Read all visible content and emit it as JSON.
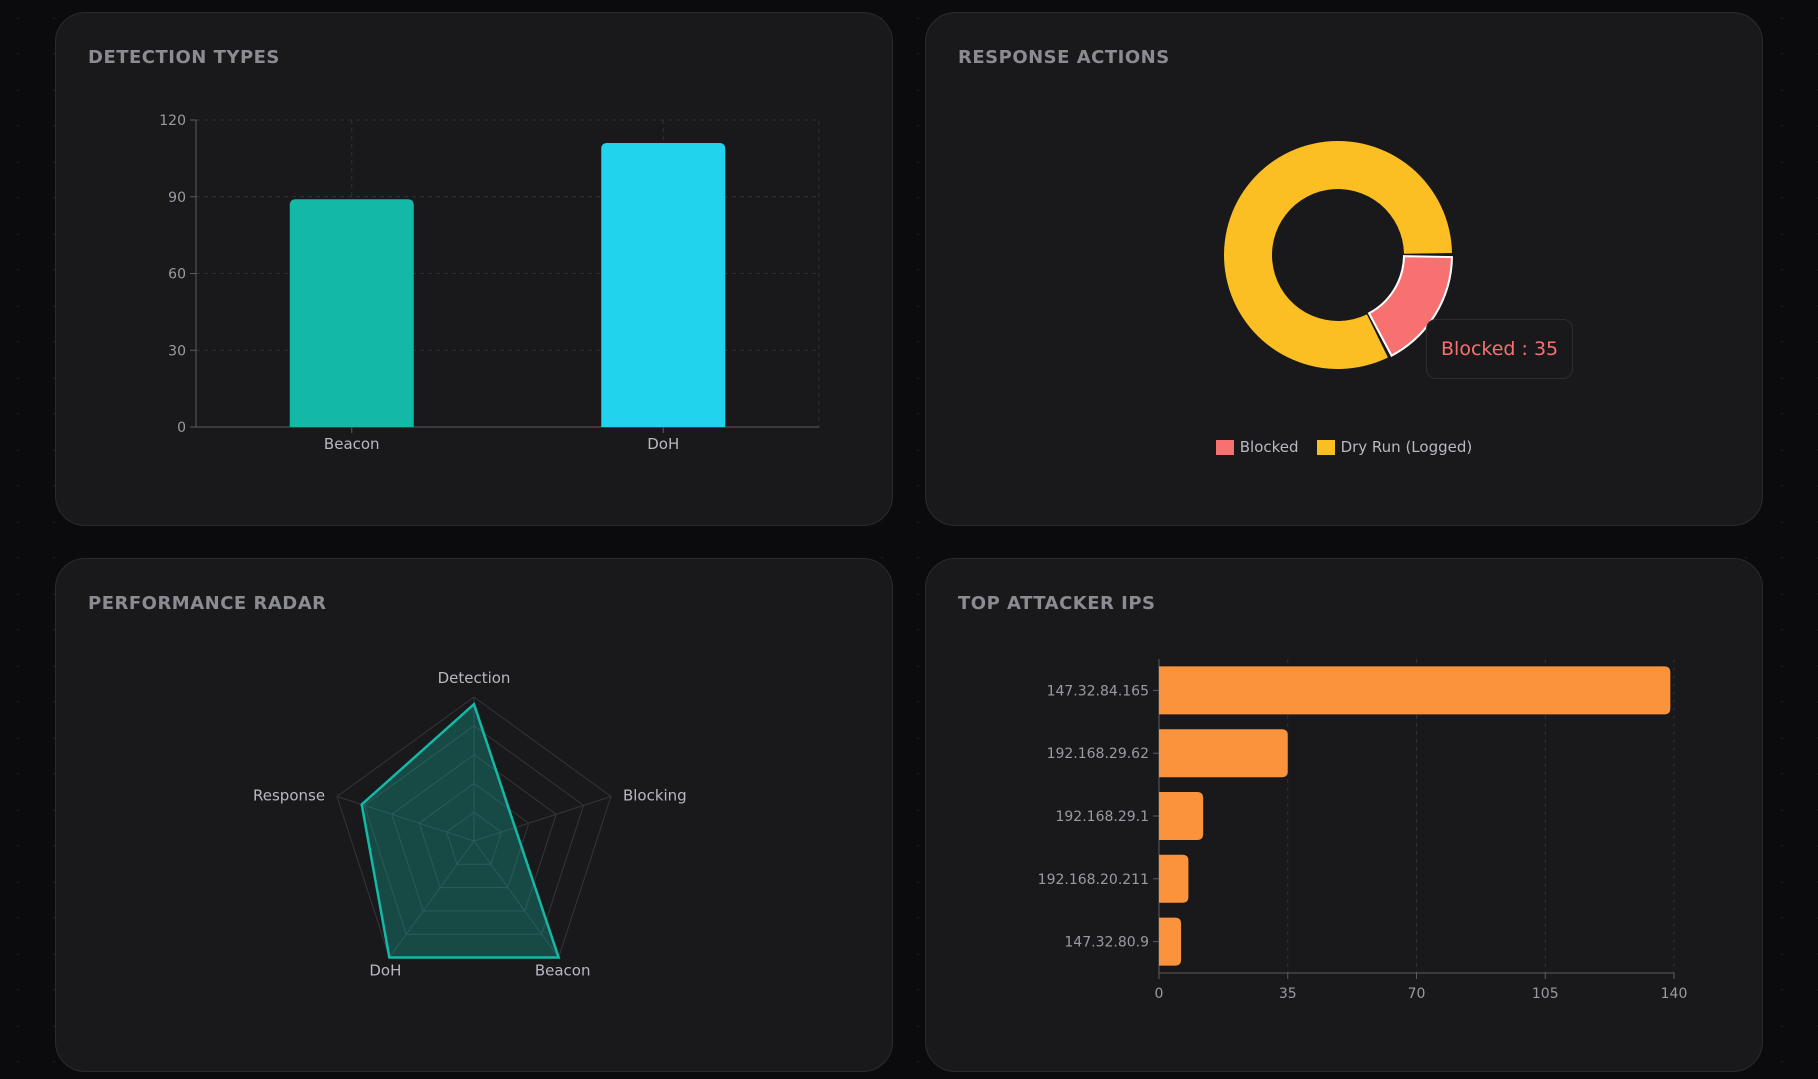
{
  "colors": {
    "beacon": "#14b8a6",
    "doh": "#22d3ee",
    "blocked": "#f87171",
    "dry_run": "#fbbf24",
    "radar": "#14b8a6",
    "attackers": "#fb923c"
  },
  "cards": {
    "detection_types": {
      "title": "DETECTION TYPES"
    },
    "response_actions": {
      "title": "RESPONSE ACTIONS",
      "tooltip": "Blocked : 35"
    },
    "performance_radar": {
      "title": "PERFORMANCE RADAR"
    },
    "top_attacker_ips": {
      "title": "TOP ATTACKER IPS"
    }
  },
  "chart_data": [
    {
      "type": "bar",
      "categories": [
        "Beacon",
        "DoH"
      ],
      "values": [
        89,
        111
      ],
      "ylim": [
        0,
        120
      ],
      "yticks": [
        "0",
        "30",
        "60",
        "90",
        "120"
      ],
      "grid": true
    },
    {
      "type": "pie",
      "donut": true,
      "labels": [
        "Blocked",
        "Dry Run (Logged)"
      ],
      "values": [
        35,
        165
      ],
      "legend": "bottom"
    },
    {
      "type": "radar",
      "axes": [
        "Detection",
        "Blocking",
        "Beacon",
        "DoH",
        "Response"
      ],
      "values": [
        95,
        30,
        100,
        100,
        82
      ],
      "max": 100
    },
    {
      "type": "bar",
      "orientation": "horizontal",
      "categories": [
        "147.32.84.165",
        "192.168.29.62",
        "192.168.29.1",
        "192.168.20.211",
        "147.32.80.9"
      ],
      "values": [
        139,
        35,
        12,
        8,
        6
      ],
      "xlim": [
        0,
        140
      ],
      "xticks": [
        "0",
        "35",
        "70",
        "105",
        "140"
      ],
      "grid": true
    }
  ]
}
